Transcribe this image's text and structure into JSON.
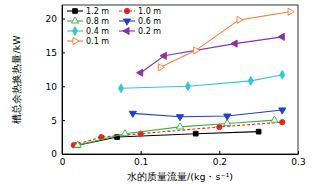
{
  "chart_data": {
    "type": "line",
    "x_label": "水的质量流量/(kg・s⁻¹)",
    "y_label": "槽总余热换热量/kW",
    "xlim": [
      0,
      0.3
    ],
    "xticks": [
      0,
      0.1,
      0.2,
      0.3
    ],
    "ylim": [
      0,
      22
    ],
    "yticks": [
      0,
      5,
      10,
      15,
      20
    ],
    "legend": "upper-left",
    "series": [
      {
        "name": "1.2 m",
        "color": "#000000",
        "marker": "square",
        "line_style": "solid",
        "x": [
          0.02,
          0.07,
          0.17,
          0.25
        ],
        "values": [
          1.3,
          2.5,
          3.0,
          3.3
        ]
      },
      {
        "name": "1.0 m",
        "color": "#e8231f",
        "marker": "circle",
        "line_style": "dashed",
        "x": [
          0.015,
          0.05,
          0.1,
          0.2,
          0.28
        ],
        "values": [
          1.3,
          2.5,
          3.0,
          4.0,
          4.7
        ]
      },
      {
        "name": "0.8 m",
        "color": "#3cb43c",
        "marker": "triangle-up-open",
        "line_style": "solid",
        "x": [
          0.02,
          0.08,
          0.15,
          0.21,
          0.27
        ],
        "values": [
          1.3,
          3.0,
          4.0,
          4.5,
          5.0
        ]
      },
      {
        "name": "0.6 m",
        "color": "#1f3fd0",
        "marker": "triangle-down",
        "line_style": "solid",
        "x": [
          0.09,
          0.15,
          0.21,
          0.28
        ],
        "values": [
          6.0,
          5.5,
          5.6,
          6.5
        ]
      },
      {
        "name": "0.4 m",
        "color": "#33c4e0",
        "marker": "diamond",
        "line_style": "solid",
        "x": [
          0.075,
          0.16,
          0.24,
          0.28
        ],
        "values": [
          9.7,
          10.0,
          10.8,
          11.7
        ]
      },
      {
        "name": "0.2 m",
        "color": "#8b2fa8",
        "marker": "triangle-left",
        "line_style": "solid",
        "x": [
          0.1,
          0.13,
          0.22,
          0.28
        ],
        "values": [
          12.0,
          14.5,
          16.3,
          17.3
        ]
      },
      {
        "name": "0.1 m",
        "color": "#f57c2a",
        "marker": "triangle-right-open",
        "line_style": "solid",
        "x": [
          0.125,
          0.17,
          0.225,
          0.29
        ],
        "values": [
          12.8,
          15.3,
          19.8,
          21.0
        ]
      }
    ]
  }
}
